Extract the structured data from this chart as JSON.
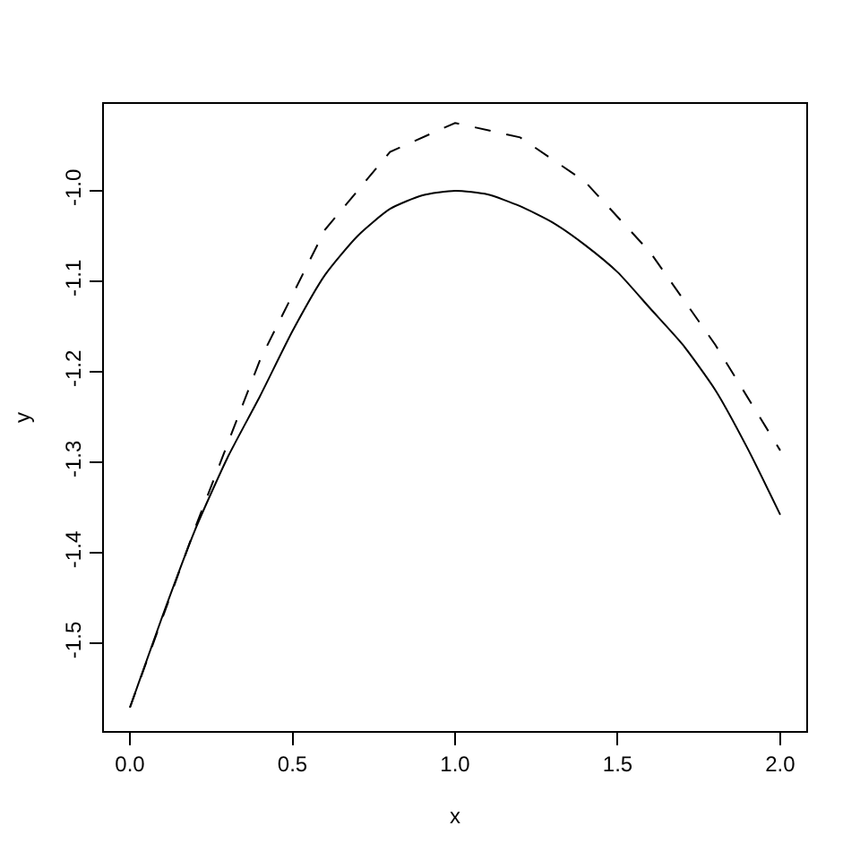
{
  "chart_data": {
    "type": "line",
    "xlabel": "x",
    "ylabel": "y",
    "xlim": [
      -0.08,
      2.08
    ],
    "ylim": [
      -1.597,
      -0.904
    ],
    "xticks": [
      {
        "value": 0,
        "label": "0.0"
      },
      {
        "value": 0.5,
        "label": "0.5"
      },
      {
        "value": 1,
        "label": "1.0"
      },
      {
        "value": 1.5,
        "label": "1.5"
      },
      {
        "value": 2,
        "label": "2.0"
      }
    ],
    "yticks": [
      {
        "value": -1.5,
        "label": "-1.5"
      },
      {
        "value": -1.4,
        "label": "-1.4"
      },
      {
        "value": -1.3,
        "label": "-1.3"
      },
      {
        "value": -1.2,
        "label": "-1.2"
      },
      {
        "value": -1.1,
        "label": "-1.1"
      },
      {
        "value": -1.0,
        "label": "-1.0"
      }
    ],
    "grid": false,
    "series": [
      {
        "color": "#000000",
        "line_style": "solid",
        "x": [
          0,
          0.1,
          0.2,
          0.3,
          0.4,
          0.5,
          0.6,
          0.7,
          0.8,
          0.9,
          1.0,
          1.1,
          1.2,
          1.3,
          1.4,
          1.5,
          1.6,
          1.7,
          1.8,
          1.9,
          2.0
        ],
        "values": [
          -1.571,
          -1.47,
          -1.375,
          -1.295,
          -1.227,
          -1.155,
          -1.093,
          -1.05,
          -1.02,
          -1.005,
          -1.0,
          -1.004,
          -1.017,
          -1.035,
          -1.06,
          -1.09,
          -1.13,
          -1.17,
          -1.22,
          -1.285,
          -1.358
        ]
      },
      {
        "color": "#000000",
        "line_style": "dashed",
        "x": [
          0,
          0.2,
          0.4,
          0.6,
          0.8,
          1.0,
          1.2,
          1.4,
          1.6,
          1.8,
          2.0
        ],
        "values": [
          -1.571,
          -1.373,
          -1.187,
          -1.043,
          -0.957,
          -0.925,
          -0.941,
          -0.99,
          -1.068,
          -1.17,
          -1.287
        ]
      }
    ]
  }
}
